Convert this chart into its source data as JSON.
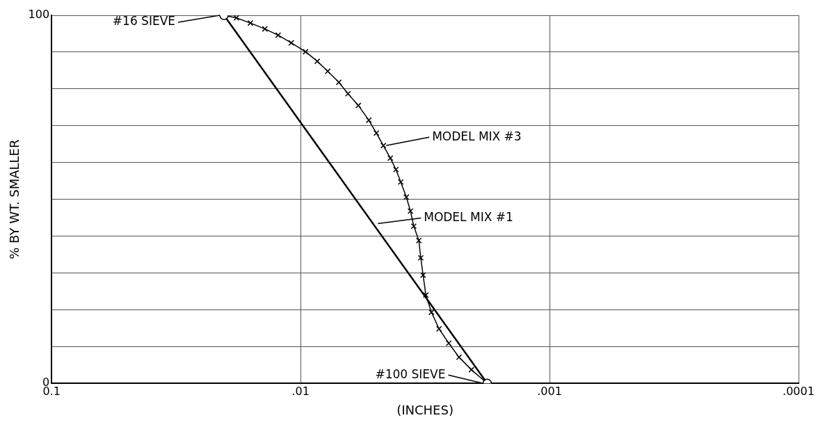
{
  "chart_data": {
    "type": "line",
    "xlabel": "(INCHES)",
    "ylabel": "% BY WT. SMALLER",
    "log": "x",
    "xlim": [
      0.1,
      0.0001
    ],
    "xticks": [
      0.1,
      {
        "value": 0.01,
        "label": ".01"
      },
      {
        "value": 0.001,
        "label": ".001"
      },
      {
        "value": 0.0001,
        "label": ".0001"
      }
    ],
    "ylim": [
      0,
      100
    ],
    "yticks": [
      0,
      {
        "value": 10,
        "label": null
      },
      {
        "value": 20,
        "label": null
      },
      {
        "value": 30,
        "label": null
      },
      {
        "value": 40,
        "label": null
      },
      {
        "value": 50,
        "label": null
      },
      {
        "value": 60,
        "label": null
      },
      {
        "value": 70,
        "label": null
      },
      {
        "value": 80,
        "label": null
      },
      {
        "value": 90,
        "label": null
      },
      100
    ],
    "grid": true,
    "legend": false,
    "series": [
      {
        "color": "#000000",
        "marker": "circle",
        "x": [
          0.0203,
          0.00178
        ],
        "values": [
          100,
          0
        ]
      },
      {
        "color": "#000000",
        "marker": "cross",
        "x": [
          0.0203,
          0.0181,
          0.0159,
          0.0139,
          0.0123,
          0.0109,
          0.00955,
          0.00857,
          0.00778,
          0.00702,
          0.00645,
          0.00586,
          0.00532,
          0.00496,
          0.00465,
          0.00436,
          0.00414,
          0.00396,
          0.00376,
          0.00362,
          0.00351,
          0.00335,
          0.00329,
          0.00322,
          0.00314,
          0.00298,
          0.00278,
          0.00254,
          0.00231,
          0.00206,
          0.00178
        ],
        "values": [
          100,
          99.3,
          97.9,
          96.3,
          94.6,
          92.5,
          90.1,
          87.5,
          84.8,
          81.8,
          78.7,
          75.5,
          71.5,
          68.0,
          64.6,
          61.2,
          58.1,
          54.7,
          50.6,
          46.8,
          42.7,
          38.8,
          34.1,
          29.4,
          24.0,
          19.3,
          14.8,
          10.9,
          7.1,
          3.7,
          0
        ]
      }
    ],
    "annotations": [
      {
        "text": "#16 SIEVE",
        "x": 0.0203,
        "y": 100
      },
      {
        "text": "MODEL MIX #3",
        "x": 0.00465,
        "y": 64.6
      },
      {
        "text": "MODEL MIX #1",
        "x": 0.00502,
        "y": 43.4
      },
      {
        "text": "#100 SIEVE",
        "x": 0.00178,
        "y": 0
      }
    ]
  }
}
